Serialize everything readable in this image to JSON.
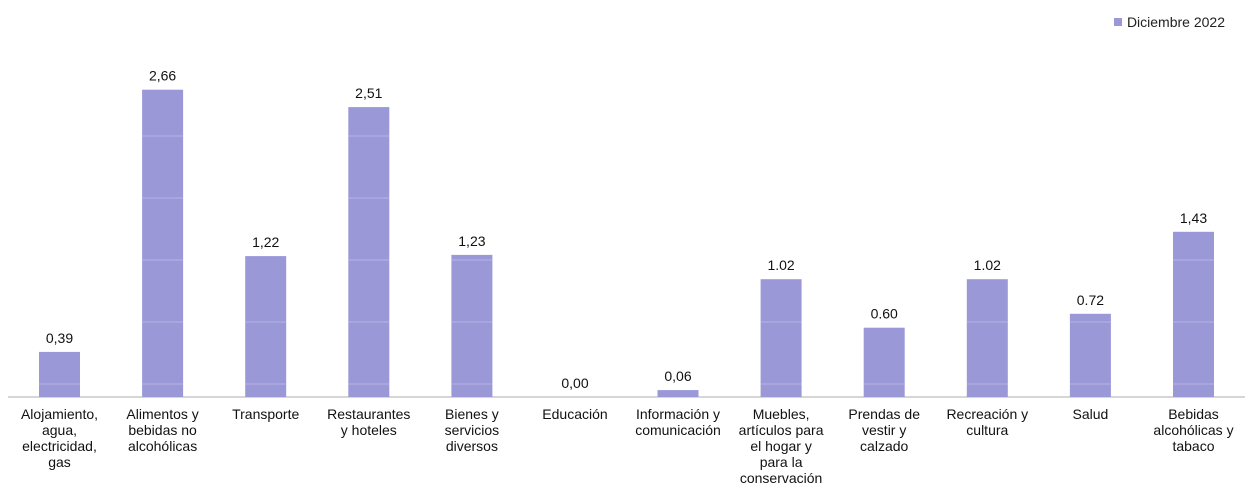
{
  "legend": {
    "label": "Diciembre 2022",
    "color": "#9b98d8"
  },
  "chart_data": {
    "type": "bar",
    "categories": [
      [
        "Alojamiento,",
        "agua,",
        "electricidad,",
        "gas"
      ],
      [
        "Alimentos y",
        "bebidas no",
        "alcohólicas"
      ],
      [
        "Transporte"
      ],
      [
        "Restaurantes",
        "y hoteles"
      ],
      [
        "Bienes y",
        "servicios",
        "diversos"
      ],
      [
        "Educación"
      ],
      [
        "Información y",
        "comunicación"
      ],
      [
        "Muebles,",
        "artículos para",
        "el hogar y",
        "para la",
        "conservación"
      ],
      [
        "Prendas de",
        "vestir y",
        "calzado"
      ],
      [
        "Recreación y",
        "cultura"
      ],
      [
        "Salud"
      ],
      [
        "Bebidas",
        "alcohólicas y",
        "tabaco"
      ]
    ],
    "series": [
      {
        "name": "Diciembre 2022",
        "values": [
          0.39,
          2.66,
          1.22,
          2.51,
          1.23,
          0.0,
          0.06,
          1.02,
          0.6,
          1.02,
          0.72,
          1.43
        ],
        "labels": [
          "0,39",
          "2,66",
          "1,22",
          "2,51",
          "1,23",
          "0,00",
          "0,06",
          "1.02",
          "0.60",
          "1.02",
          "0.72",
          "1,43"
        ]
      }
    ],
    "ylim": [
      0,
      2.9
    ],
    "grid": false,
    "legend_position": "top-right",
    "bar_color": "#9b98d8",
    "axis_color": "#c8c8c8"
  }
}
